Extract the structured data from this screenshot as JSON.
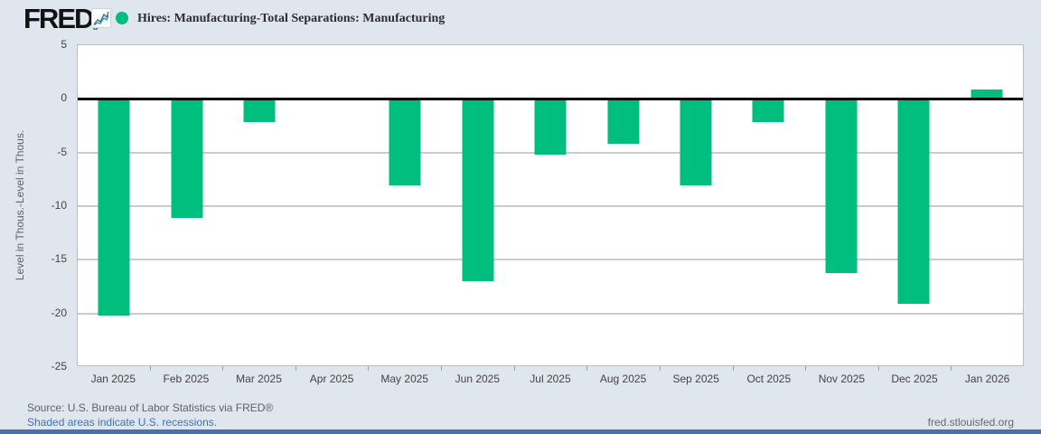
{
  "header": {
    "logo_text": "FRED",
    "logo_registered": "®",
    "legend_marker": "green-dot"
  },
  "chart_data": {
    "type": "bar",
    "title": "Hires: Manufacturing-Total Separations: Manufacturing",
    "categories": [
      "Jan 2025",
      "Feb 2025",
      "Mar 2025",
      "Apr 2025",
      "May 2025",
      "Jun 2025",
      "Jul 2025",
      "Aug 2025",
      "Sep 2025",
      "Oct 2025",
      "Nov 2025",
      "Dec 2025",
      "Jan 2026"
    ],
    "values": [
      -20.2,
      -11.1,
      -2.2,
      0.0,
      -8.1,
      -17.0,
      -5.2,
      -4.2,
      -8.1,
      -2.2,
      -16.2,
      -19.1,
      0.9
    ],
    "ylabel": "Level in Thous.-Level in Thous.",
    "xlabel": "",
    "ylim": [
      -25,
      5
    ],
    "yticks": [
      5,
      0,
      -5,
      -10,
      -15,
      -20,
      -25
    ],
    "grid": true,
    "legend_position": "top",
    "bar_color": "#00be7d"
  },
  "footer": {
    "source_line": "Source: U.S. Bureau of Labor Statistics via FRED®",
    "recession_note": "Shaded areas indicate U.S. recessions.",
    "watermark": "fred.stlouisfed.org"
  },
  "colors": {
    "bar_green": "#00be7d",
    "background": "#dfe6ed",
    "link_blue": "#4273b4",
    "zero_line": "#000000",
    "gridline": "#cbcbcb",
    "plot_border": "#b7bdc5",
    "tick_text": "#444444",
    "source_text": "#5a626b",
    "watermark_text": "#646a72",
    "bottom_strip": "#4273b4"
  }
}
